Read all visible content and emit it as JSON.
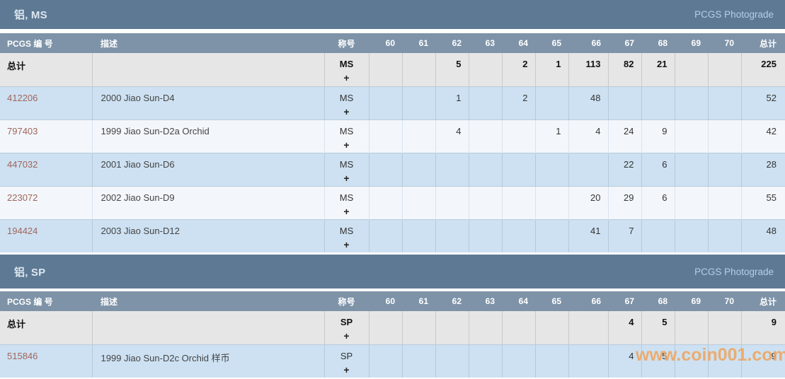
{
  "watermark": "www.coin001.com",
  "colors": {
    "section_bar": "#5d7994",
    "table_header": "#7e93a8",
    "row_blue": "#cde1f2",
    "row_pale": "#f3f7fb",
    "row_total": "#e6e6e6",
    "pcgs_link": "#a1655b",
    "photograde_text": "#b5cfe8",
    "watermark_orange": "#efa763"
  },
  "columns": {
    "id_label": "PCGS 编 号",
    "desc_label": "描述",
    "designation_label": "称号",
    "grades": [
      "60",
      "61",
      "62",
      "63",
      "64",
      "65",
      "66",
      "67",
      "68",
      "69",
      "70"
    ],
    "total_label": "总计"
  },
  "sections": [
    {
      "title": "铝, MS",
      "photograde_label": "PCGS Photograde",
      "designation": "MS",
      "plus": "+",
      "total_row": {
        "label": "总计",
        "values": {
          "62": "5",
          "64": "2",
          "65": "1",
          "66": "113",
          "67": "82",
          "68": "21"
        },
        "total": "225"
      },
      "rows": [
        {
          "id": "412206",
          "desc": "2000 Jiao Sun-D4",
          "values": {
            "62": "1",
            "64": "2",
            "66": "48"
          },
          "total": "52"
        },
        {
          "id": "797403",
          "desc": "1999 Jiao Sun-D2a Orchid",
          "values": {
            "62": "4",
            "65": "1",
            "66": "4",
            "67": "24",
            "68": "9"
          },
          "total": "42"
        },
        {
          "id": "447032",
          "desc": "2001 Jiao Sun-D6",
          "values": {
            "67": "22",
            "68": "6"
          },
          "total": "28"
        },
        {
          "id": "223072",
          "desc": "2002 Jiao Sun-D9",
          "values": {
            "66": "20",
            "67": "29",
            "68": "6"
          },
          "total": "55"
        },
        {
          "id": "194424",
          "desc": "2003 Jiao Sun-D12",
          "values": {
            "66": "41",
            "67": "7"
          },
          "total": "48"
        }
      ]
    },
    {
      "title": "铝, SP",
      "photograde_label": "PCGS Photograde",
      "designation": "SP",
      "plus": "+",
      "total_row": {
        "label": "总计",
        "values": {
          "67": "4",
          "68": "5"
        },
        "total": "9"
      },
      "rows": [
        {
          "id": "515846",
          "desc": "1999 Jiao Sun-D2c Orchid 样币",
          "values": {
            "67": "4",
            "68": "5"
          },
          "total": "9"
        }
      ]
    }
  ]
}
